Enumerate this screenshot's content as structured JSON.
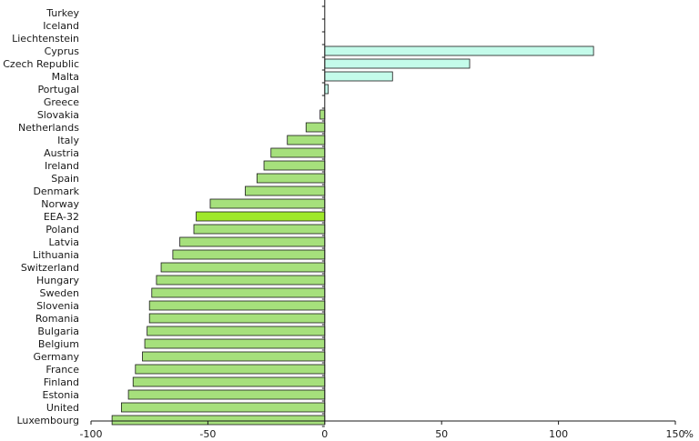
{
  "chart_data": {
    "type": "bar",
    "orientation": "horizontal",
    "categories": [
      "Turkey",
      "Iceland",
      "Liechtenstein",
      "Cyprus",
      "Czech Republic",
      "Malta",
      "Portugal",
      "Greece",
      "Slovakia",
      "Netherlands",
      "Italy",
      "Austria",
      "Ireland",
      "Spain",
      "Denmark",
      "Norway",
      "EEA-32",
      "Poland",
      "Latvia",
      "Lithuania",
      "Switzerland",
      "Hungary",
      "Sweden",
      "Slovenia",
      "Romania",
      "Bulgaria",
      "Belgium",
      "Germany",
      "France",
      "Finland",
      "Estonia",
      "United",
      "Luxembourg"
    ],
    "values": [
      null,
      null,
      null,
      115,
      62,
      29,
      1.5,
      0,
      -2,
      -8,
      -16,
      -23,
      -26,
      -29,
      -34,
      -49,
      -55,
      -56,
      -62,
      -65,
      -70,
      -72,
      -74,
      -75,
      -75,
      -76,
      -77,
      -78,
      -81,
      -82,
      -84,
      -87,
      -91
    ],
    "highlight_category": "EEA-32",
    "xlim": [
      -100,
      150
    ],
    "xticks": [
      -100,
      -50,
      0,
      50,
      100,
      150
    ],
    "xlabel": "",
    "ylabel": "",
    "unit": "%",
    "title": "",
    "grid": false,
    "legend": "none",
    "colors": {
      "negative_fill": "#a6e07c",
      "highlight_fill": "#9fe82a",
      "positive_fill": "#c4fbea",
      "bar_stroke": "#1a1a1a",
      "axis": "#1a1a1a"
    }
  }
}
